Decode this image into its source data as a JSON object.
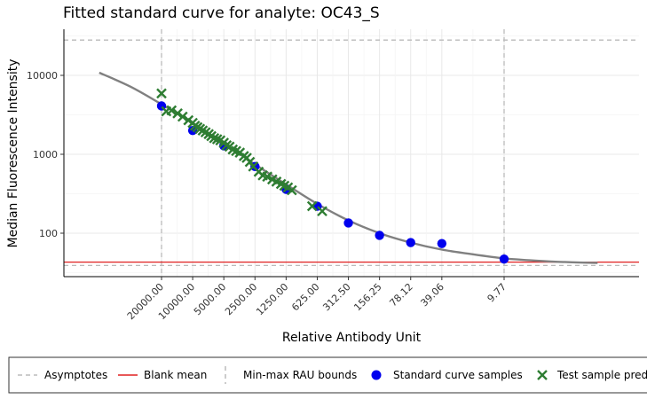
{
  "chart_data": {
    "type": "scatter",
    "title": "Fitted standard curve for analyte: OC43_S",
    "xlabel": "Relative Antibody Unit",
    "ylabel": "Median Fluorescence Intensity",
    "x_scale": "log",
    "y_scale": "log",
    "x_reversed": true,
    "ylim": [
      27,
      40000
    ],
    "x_ticks": [
      "20000.00",
      "10000.00",
      "5000.00",
      "2500.00",
      "1250.00",
      "625.00",
      "312.50",
      "156.25",
      "78.12",
      "39.06",
      "9.77"
    ],
    "y_ticks": [
      "100",
      "1000",
      "10000"
    ],
    "grid": true,
    "legend_position": "bottom",
    "colors": {
      "curve": "#808080",
      "standard": "#0000ee",
      "test": "#2e7d32",
      "blank_mean": "#e02020",
      "asymptote": "#bbbbbb",
      "bounds": "#bbbbbb"
    },
    "fitted_curve": {
      "x": [
        80000,
        40000,
        20000,
        10000,
        5000,
        2500,
        1250,
        625,
        312.5,
        156.25,
        78.12,
        39.06,
        19.53,
        9.77,
        4.88,
        2.44,
        1.22
      ],
      "y": [
        10800,
        7200,
        4300,
        2500,
        1380,
        745,
        415,
        235,
        145,
        100,
        76,
        62,
        54,
        48,
        45,
        43,
        42
      ]
    },
    "asymptotes": [
      28000,
      39
    ],
    "blank_mean": 43,
    "rau_bounds": [
      20000,
      9.77
    ],
    "series": [
      {
        "name": "Standard curve samples",
        "x": [
          20000,
          10000,
          5000,
          2500,
          1250,
          625,
          312.5,
          156.25,
          78.12,
          39.06,
          9.77
        ],
        "y": [
          4100,
          2000,
          1280,
          700,
          360,
          220,
          135,
          94,
          76,
          74,
          47
        ]
      },
      {
        "name": "Test sample predictions",
        "x": [
          20000,
          18000,
          16000,
          14000,
          12500,
          11000,
          10000,
          9500,
          9000,
          8500,
          8000,
          7500,
          7000,
          6600,
          6200,
          5800,
          5400,
          5000,
          4700,
          4400,
          4100,
          3800,
          3500,
          3200,
          3000,
          2800,
          2600,
          2300,
          2100,
          1900,
          1700,
          1550,
          1400,
          1300,
          1200,
          1100,
          700,
          560
        ],
        "y": [
          5900,
          3500,
          3600,
          3300,
          3000,
          2700,
          2500,
          2300,
          2200,
          2100,
          2000,
          1900,
          1800,
          1700,
          1600,
          1550,
          1500,
          1400,
          1300,
          1250,
          1150,
          1100,
          1050,
          950,
          900,
          800,
          700,
          600,
          540,
          520,
          480,
          450,
          420,
          400,
          380,
          350,
          220,
          190
        ]
      }
    ]
  },
  "legend": {
    "asymptotes": "Asymptotes",
    "blank_mean": "Blank mean",
    "bounds": "Min-max RAU bounds",
    "standard": "Standard curve samples",
    "test": "Test sample predictions"
  }
}
